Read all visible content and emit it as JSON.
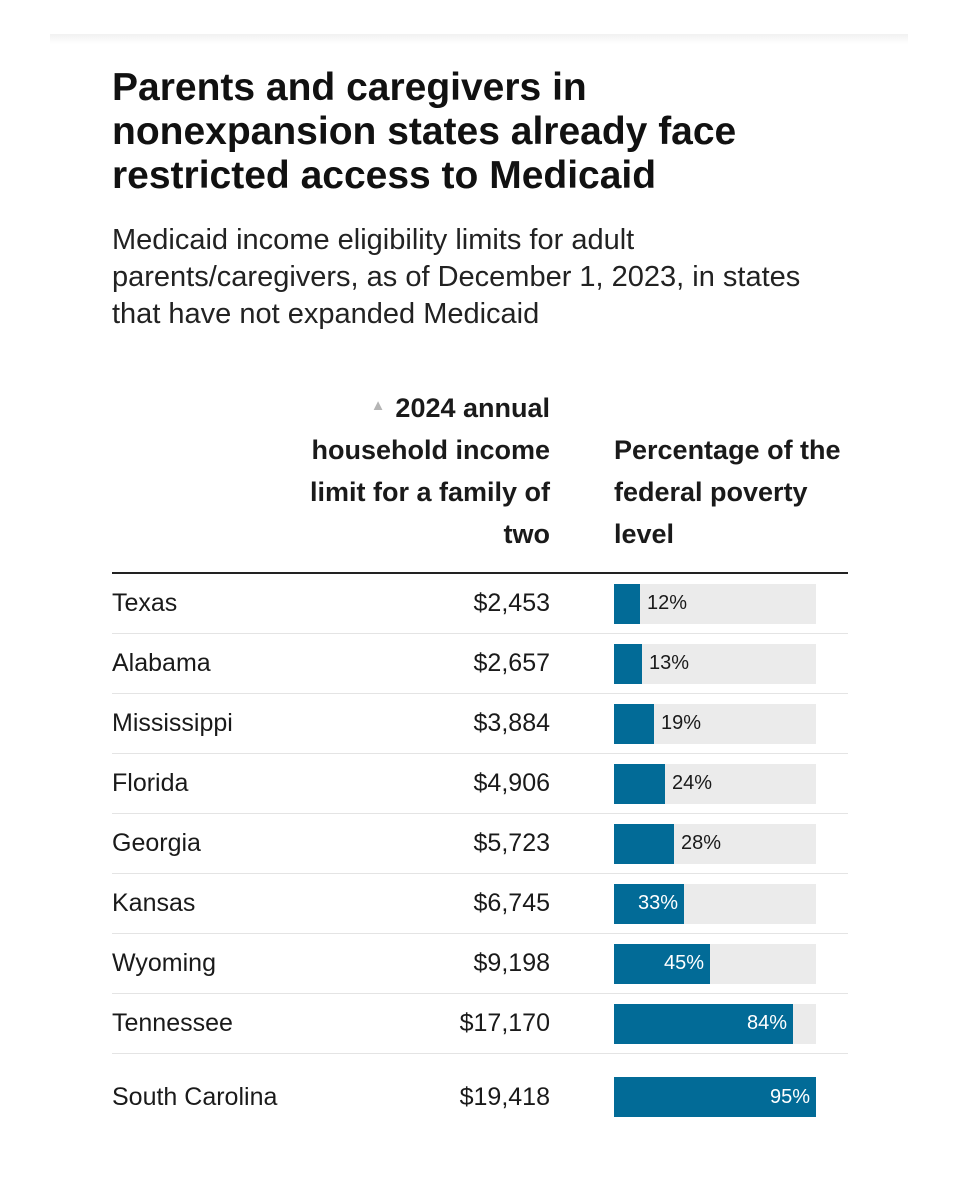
{
  "title": "Parents and caregivers in nonexpansion states already face restricted access to Medicaid",
  "subtitle": "Medicaid income eligibility limits for adult parents/caregivers, as of December 1, 2023, in states that have not expanded Medicaid",
  "table": {
    "col_income": "2024 annual household income limit for a family of two",
    "col_pct": "Percentage of the federal poverty level",
    "sort_icon": "triangle-up-icon"
  },
  "colors": {
    "bar": "#026b97",
    "track": "#ebebeb"
  },
  "chart_data": {
    "type": "bar",
    "orientation": "horizontal",
    "title": "Parents and caregivers in nonexpansion states already face restricted access to Medicaid",
    "subtitle": "Medicaid income eligibility limits for adult parents/caregivers, as of December 1, 2023, in states that have not expanded Medicaid",
    "categories": [
      "Texas",
      "Alabama",
      "Mississippi",
      "Florida",
      "Georgia",
      "Kansas",
      "Wyoming",
      "Tennessee",
      "South Carolina"
    ],
    "income_labels": [
      "$2,453",
      "$2,657",
      "$3,884",
      "$4,906",
      "$5,723",
      "$6,745",
      "$9,198",
      "$17,170",
      "$19,418"
    ],
    "values": [
      12,
      13,
      19,
      24,
      28,
      33,
      45,
      84,
      95
    ],
    "value_labels": [
      "12%",
      "13%",
      "19%",
      "24%",
      "28%",
      "33%",
      "45%",
      "84%",
      "95%"
    ],
    "xlim": [
      0,
      95
    ],
    "grid": false,
    "legend": "none"
  }
}
